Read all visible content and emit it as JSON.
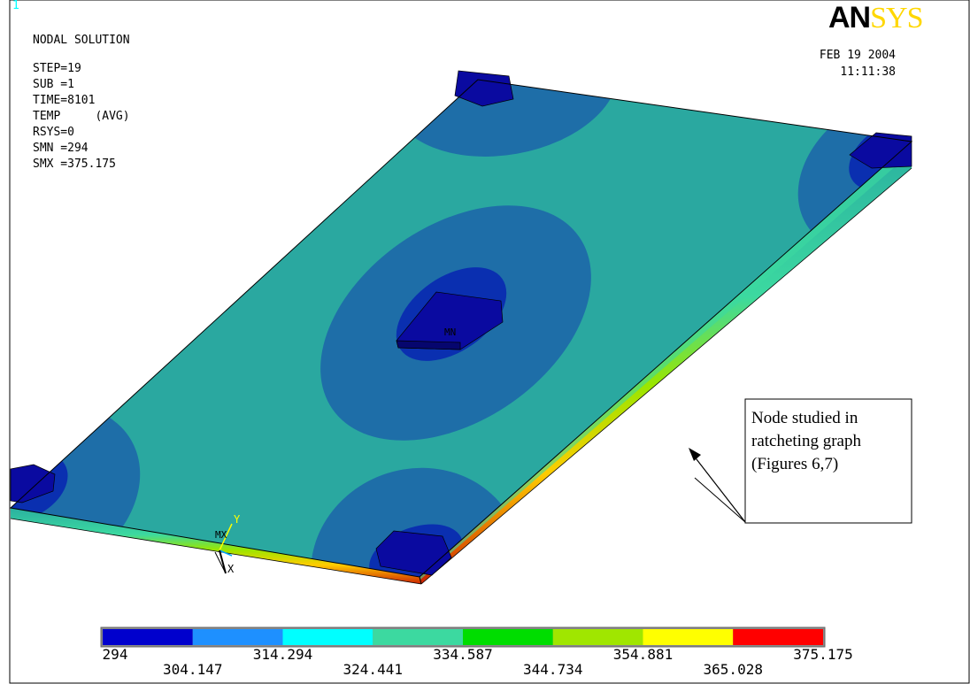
{
  "window_number": "1",
  "brand": {
    "part1": "AN",
    "part2": "SYS"
  },
  "colors": {
    "window_number": "#00ffff",
    "brand_dark": "#000000",
    "brand_light": "#ffd700",
    "plate_face": "#2aa8a0",
    "cold_zone": "#1e6ea8",
    "support": "#0a0aa0"
  },
  "header": {
    "title": "NODAL SOLUTION",
    "lines": [
      "STEP=19",
      "SUB =1",
      "TIME=8101",
      "TEMP     (AVG)",
      "RSYS=0",
      "SMN =294",
      "SMX =375.175"
    ]
  },
  "datetime": {
    "date": "FEB 19 2004",
    "time": "11:11:38"
  },
  "model_labels": {
    "mn": "MN",
    "mx": "MX",
    "axis_y": "Y",
    "axis_x": "X"
  },
  "annotation": {
    "lines": [
      "Node studied in",
      "ratcheting graph",
      "(Figures 6,7)"
    ]
  },
  "legend": {
    "levels": [
      "294",
      "304.147",
      "314.294",
      "324.441",
      "334.587",
      "344.734",
      "354.881",
      "365.028",
      "375.175"
    ],
    "colors": [
      "#0000cd",
      "#1e90ff",
      "#00ffff",
      "#3cd9a0",
      "#00dd00",
      "#a0e600",
      "#ffff00",
      "#ff0000"
    ]
  }
}
